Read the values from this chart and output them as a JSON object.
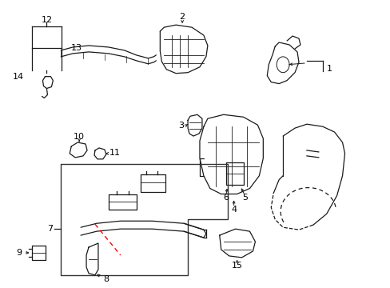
{
  "background_color": "#ffffff",
  "line_color": "#1a1a1a",
  "red_dashed_color": "#ff0000",
  "box_color": "#333333",
  "fig_width": 4.89,
  "fig_height": 3.6,
  "dpi": 100
}
